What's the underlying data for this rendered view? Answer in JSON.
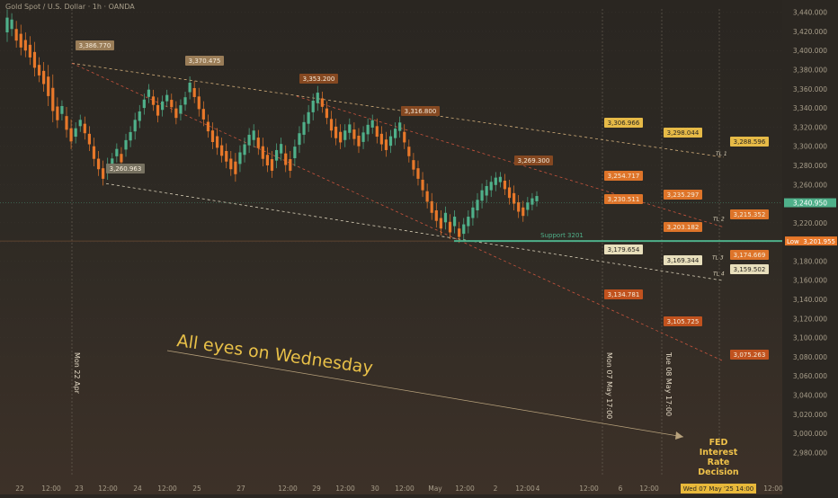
{
  "chart_data": {
    "type": "candlestick",
    "symbol_title": "Gold Spot / U.S. Dollar · 1h · OANDA",
    "y_axis": {
      "min": 2970,
      "max": 3450,
      "step": 20,
      "ticks": [
        "3,440.000",
        "3,420.000",
        "3,400.000",
        "3,380.000",
        "3,360.000",
        "3,340.000",
        "3,320.000",
        "3,300.000",
        "3,280.000",
        "3,260.000",
        "3,240.000",
        "3,220.000",
        "3,200.000",
        "3,180.000",
        "3,160.000",
        "3,140.000",
        "3,120.000",
        "3,100.000",
        "3,080.000",
        "3,060.000",
        "3,040.000",
        "3,020.000",
        "3,000.000",
        "2,980.000"
      ]
    },
    "x_axis": {
      "labels": [
        "22",
        "12:00",
        "23",
        "12:00",
        "24",
        "12:00",
        "25",
        "27",
        "12:00",
        "29",
        "12:00",
        "30",
        "12:00",
        "May",
        "12:00",
        "2",
        "12:00",
        "4",
        "12:00",
        "6",
        "12:00",
        "12:00",
        "12:00"
      ],
      "bottom_tag": "Wed 07 May '25   14:00"
    },
    "current_price": "3,240.950",
    "low_label": "Low",
    "low_value": "3,201.955",
    "support_level": 3201,
    "support_text": "Support 3201",
    "price_path": [
      [
        3412,
        3440
      ],
      [
        3418,
        3436
      ],
      [
        3406,
        3428
      ],
      [
        3398,
        3424
      ],
      [
        3396,
        3416
      ],
      [
        3388,
        3412
      ],
      [
        3376,
        3406
      ],
      [
        3370,
        3390
      ],
      [
        3360,
        3385
      ],
      [
        3345,
        3382
      ],
      [
        3328,
        3372
      ],
      [
        3322,
        3348
      ],
      [
        3330,
        3345
      ],
      [
        3312,
        3338
      ],
      [
        3300,
        3325
      ],
      [
        3306,
        3322
      ],
      [
        3318,
        3330
      ],
      [
        3310,
        3328
      ],
      [
        3298,
        3318
      ],
      [
        3282,
        3306
      ],
      [
        3272,
        3292
      ],
      [
        3262,
        3282
      ],
      [
        3268,
        3285
      ],
      [
        3276,
        3290
      ],
      [
        3286,
        3300
      ],
      [
        3280,
        3296
      ],
      [
        3292,
        3310
      ],
      [
        3302,
        3318
      ],
      [
        3310,
        3332
      ],
      [
        3322,
        3340
      ],
      [
        3336,
        3352
      ],
      [
        3348,
        3362
      ],
      [
        3340,
        3356
      ],
      [
        3328,
        3348
      ],
      [
        3334,
        3350
      ],
      [
        3344,
        3356
      ],
      [
        3338,
        3352
      ],
      [
        3326,
        3344
      ],
      [
        3330,
        3346
      ],
      [
        3340,
        3354
      ],
      [
        3352,
        3370
      ],
      [
        3348,
        3365
      ],
      [
        3334,
        3358
      ],
      [
        3324,
        3344
      ],
      [
        3312,
        3330
      ],
      [
        3300,
        3322
      ],
      [
        3294,
        3316
      ],
      [
        3286,
        3306
      ],
      [
        3280,
        3300
      ],
      [
        3272,
        3292
      ],
      [
        3266,
        3290
      ],
      [
        3276,
        3298
      ],
      [
        3286,
        3306
      ],
      [
        3296,
        3316
      ],
      [
        3302,
        3320
      ],
      [
        3294,
        3314
      ],
      [
        3282,
        3306
      ],
      [
        3276,
        3296
      ],
      [
        3270,
        3292
      ],
      [
        3280,
        3300
      ],
      [
        3288,
        3306
      ],
      [
        3276,
        3298
      ],
      [
        3270,
        3292
      ],
      [
        3282,
        3304
      ],
      [
        3296,
        3318
      ],
      [
        3306,
        3330
      ],
      [
        3318,
        3340
      ],
      [
        3330,
        3352
      ],
      [
        3340,
        3360
      ],
      [
        3338,
        3354
      ],
      [
        3326,
        3344
      ],
      [
        3312,
        3334
      ],
      [
        3304,
        3326
      ],
      [
        3300,
        3320
      ],
      [
        3302,
        3320
      ],
      [
        3310,
        3326
      ],
      [
        3304,
        3322
      ],
      [
        3296,
        3316
      ],
      [
        3300,
        3318
      ],
      [
        3308,
        3326
      ],
      [
        3316,
        3330
      ],
      [
        3306,
        3326
      ],
      [
        3298,
        3318
      ],
      [
        3292,
        3312
      ],
      [
        3296,
        3314
      ],
      [
        3304,
        3322
      ],
      [
        3312,
        3328
      ],
      [
        3300,
        3320
      ],
      [
        3286,
        3304
      ],
      [
        3272,
        3290
      ],
      [
        3262,
        3282
      ],
      [
        3250,
        3270
      ],
      [
        3238,
        3258
      ],
      [
        3226,
        3248
      ],
      [
        3218,
        3238
      ],
      [
        3210,
        3230
      ],
      [
        3216,
        3234
      ],
      [
        3206,
        3226
      ],
      [
        3212,
        3230
      ],
      [
        3202,
        3218
      ],
      [
        3204,
        3222
      ],
      [
        3212,
        3230
      ],
      [
        3220,
        3240
      ],
      [
        3228,
        3248
      ],
      [
        3238,
        3258
      ],
      [
        3244,
        3262
      ],
      [
        3250,
        3266
      ],
      [
        3256,
        3270
      ],
      [
        3260,
        3270
      ],
      [
        3252,
        3268
      ],
      [
        3242,
        3262
      ],
      [
        3236,
        3256
      ],
      [
        3228,
        3246
      ],
      [
        3224,
        3240
      ],
      [
        3230,
        3244
      ],
      [
        3236,
        3248
      ],
      [
        3240,
        3250
      ]
    ],
    "trendlines": [
      {
        "name": "TL 1",
        "color": "#d4b07c",
        "from": [
          3386.77
        ],
        "to": [
          3288.596
        ]
      },
      {
        "name": "TL 2",
        "color": "#c9543d",
        "from": [
          3352.2
        ],
        "to": [
          3215.352
        ]
      },
      {
        "name": "TL 3",
        "color": "#c9543d",
        "from": [
          3386.77
        ],
        "to": [
          3075.263
        ]
      },
      {
        "name": "TL 4",
        "color": "#d9d0b8",
        "from": [
          3260.963
        ],
        "to": [
          3159.502
        ]
      }
    ],
    "annotations": [
      {
        "text": "3,386.770",
        "value": 3386.77,
        "style": "tan"
      },
      {
        "text": "3,370.475",
        "value": 3370.475,
        "style": "tan"
      },
      {
        "text": "3,353.200",
        "value": 3353.2,
        "style": "brown"
      },
      {
        "text": "3,316.800",
        "value": 3316.8,
        "style": "brown"
      },
      {
        "text": "3,260.963",
        "value": 3260.963,
        "style": "gray"
      },
      {
        "text": "3,269.300",
        "value": 3269.3,
        "style": "brown"
      },
      {
        "text": "3,306.966",
        "value": 3306.966,
        "style": "yellow"
      },
      {
        "text": "3,254.717",
        "value": 3254.717,
        "style": "orange"
      },
      {
        "text": "3,230.511",
        "value": 3230.511,
        "style": "orange"
      },
      {
        "text": "3,179.654",
        "value": 3179.654,
        "style": "cream"
      },
      {
        "text": "3,134.781",
        "value": 3134.781,
        "style": "darkorange"
      },
      {
        "text": "3,298.044",
        "value": 3298.044,
        "style": "yellow"
      },
      {
        "text": "3,235.297",
        "value": 3235.297,
        "style": "orange"
      },
      {
        "text": "3,203.182",
        "value": 3203.182,
        "style": "orange"
      },
      {
        "text": "3,169.344",
        "value": 3169.344,
        "style": "cream"
      },
      {
        "text": "3,105.725",
        "value": 3105.725,
        "style": "darkorange"
      },
      {
        "text": "3,288.596",
        "value": 3288.596,
        "style": "yellow"
      },
      {
        "text": "3,215.352",
        "value": 3215.352,
        "style": "orange"
      },
      {
        "text": "3,174.669",
        "value": 3174.669,
        "style": "orange"
      },
      {
        "text": "3,159.502",
        "value": 3159.502,
        "style": "cream"
      },
      {
        "text": "3,075.263",
        "value": 3075.263,
        "style": "darkorange"
      }
    ],
    "tl_labels": [
      "TL 1",
      "TL 2",
      "TL 3",
      "TL 4"
    ],
    "vertical_labels": [
      "Mon 22 Apr",
      "Mon 07 May 17:00",
      "Tue 08 May 17:00"
    ],
    "headline": "All eyes on Wednesday",
    "event": [
      "FED",
      "Interest",
      "Rate",
      "Decision"
    ],
    "colors": {
      "up": "#4fb08a",
      "down": "#e8782a",
      "support": "#4fb08a",
      "tan": "#a0825c",
      "brown": "#8a4a22",
      "gray": "#7a7564",
      "yellow": "#f0c24a",
      "orange": "#e8782a",
      "cream": "#f2e9c4",
      "darkorange": "#c9541e",
      "headline": "#e8c048",
      "event": "#f0c24a"
    }
  }
}
